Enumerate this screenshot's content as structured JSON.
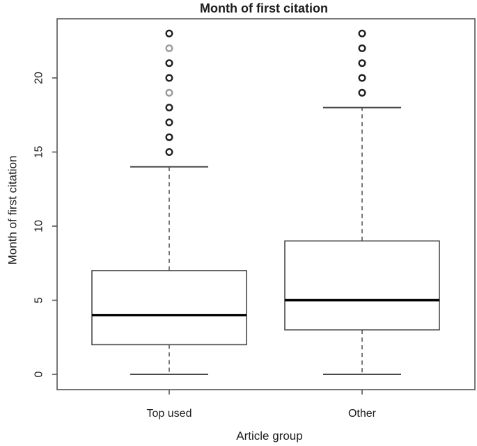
{
  "chart_data": {
    "type": "boxplot",
    "title": "Month of first citation",
    "xlabel": "Article group",
    "ylabel": "Month of first citation",
    "ylim": [
      0,
      23
    ],
    "yticks": [
      "0",
      "5",
      "10",
      "15",
      "20"
    ],
    "ytick_values": [
      0,
      5,
      10,
      15,
      20
    ],
    "grid": false,
    "legend": "none",
    "colors": {
      "line": "#4a4a4a",
      "border": "#555555",
      "median": "#000000",
      "outlier": "#1f1f1f",
      "outlier_faint": "#9a9a9a",
      "box_fill": "#ffffff",
      "text": "#1c1c1c"
    },
    "groups": [
      {
        "label": "Top used",
        "whisker_low": 0,
        "q1": 2,
        "median": 4,
        "q3": 7,
        "whisker_high": 14,
        "outliers": [
          15,
          16,
          17,
          18,
          19,
          20,
          21,
          22,
          23
        ],
        "faint_outliers": [
          19,
          22
        ]
      },
      {
        "label": "Other",
        "whisker_low": 0,
        "q1": 3,
        "median": 5,
        "q3": 9,
        "whisker_high": 18,
        "outliers": [
          19,
          20,
          21,
          22,
          23
        ],
        "faint_outliers": []
      }
    ]
  }
}
